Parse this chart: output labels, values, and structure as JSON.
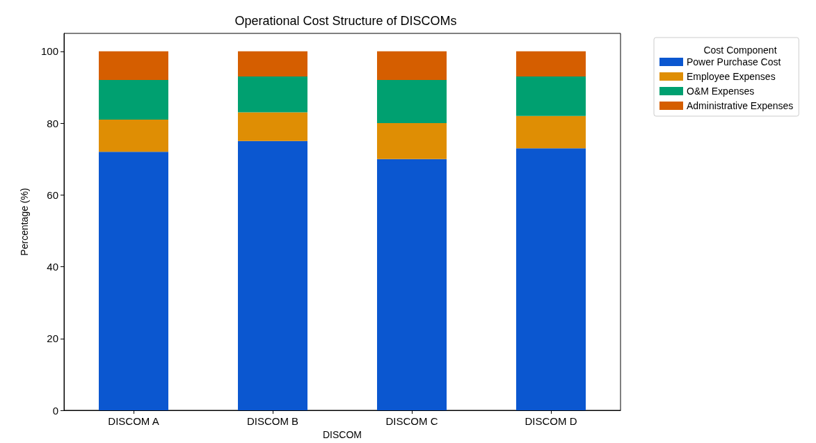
{
  "chart_data": {
    "type": "bar",
    "stacked": true,
    "title": "Operational Cost Structure of DISCOMs",
    "xlabel": "DISCOM",
    "ylabel": "Percentage (%)",
    "legend_title": "Cost Component",
    "legend": "top right",
    "categories": [
      "DISCOM A",
      "DISCOM B",
      "DISCOM C",
      "DISCOM D"
    ],
    "series": [
      {
        "name": "Power Purchase Cost",
        "color": "#0b57d0",
        "values": [
          72,
          75,
          70,
          73
        ]
      },
      {
        "name": "Employee Expenses",
        "color": "#df8e04",
        "values": [
          9,
          8,
          10,
          9
        ]
      },
      {
        "name": "O&M Expenses",
        "color": "#00a070",
        "values": [
          11,
          10,
          12,
          11
        ]
      },
      {
        "name": "Administrative Expenses",
        "color": "#d55e00",
        "values": [
          8,
          7,
          8,
          7
        ]
      }
    ],
    "ylim": [
      0,
      105
    ],
    "yticks": [
      0,
      20,
      40,
      60,
      80,
      100
    ],
    "grid": false
  }
}
